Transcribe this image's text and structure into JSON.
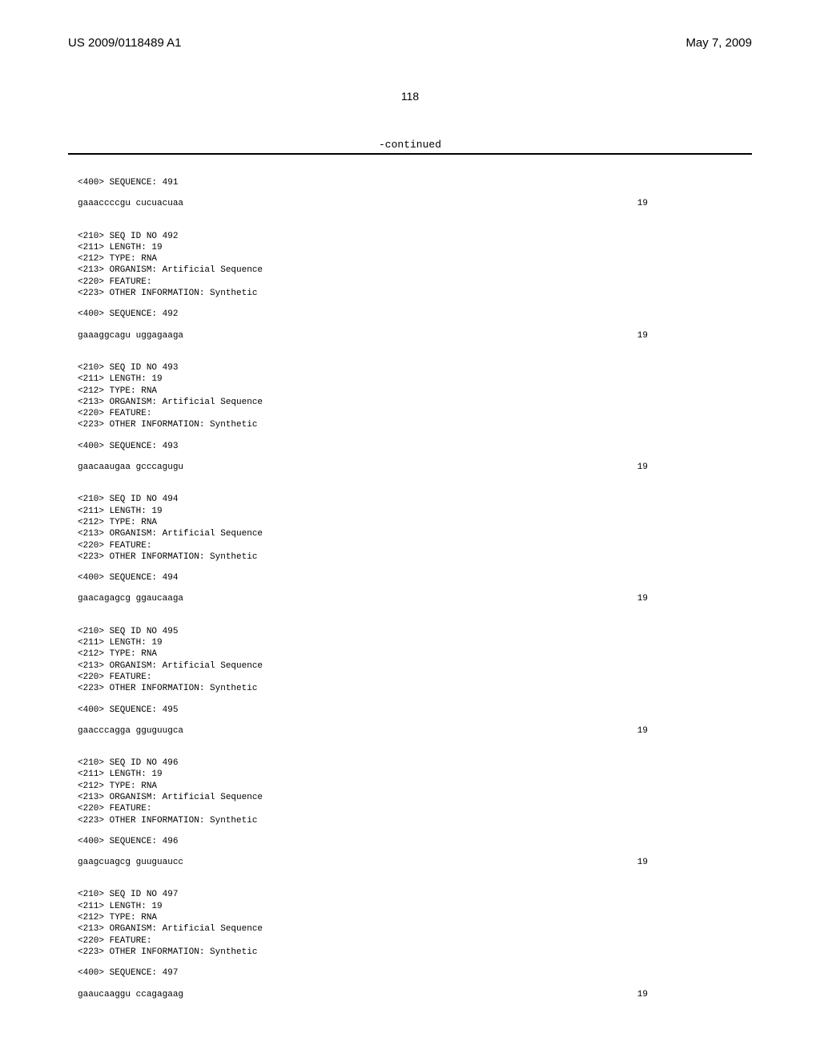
{
  "header": {
    "publicationNumber": "US 2009/0118489 A1",
    "date": "May 7, 2009"
  },
  "pageNumber": "118",
  "continuedLabel": "-continued",
  "sequences": [
    {
      "sequenceLabel": "<400> SEQUENCE: 491",
      "sequenceData": "gaaaccccgu cucuacuaa",
      "sequenceLength": "19"
    },
    {
      "fields": [
        "<210> SEQ ID NO 492",
        "<211> LENGTH: 19",
        "<212> TYPE: RNA",
        "<213> ORGANISM: Artificial Sequence",
        "<220> FEATURE:",
        "<223> OTHER INFORMATION: Synthetic"
      ],
      "sequenceLabel": "<400> SEQUENCE: 492",
      "sequenceData": "gaaaggcagu uggagaaga",
      "sequenceLength": "19"
    },
    {
      "fields": [
        "<210> SEQ ID NO 493",
        "<211> LENGTH: 19",
        "<212> TYPE: RNA",
        "<213> ORGANISM: Artificial Sequence",
        "<220> FEATURE:",
        "<223> OTHER INFORMATION: Synthetic"
      ],
      "sequenceLabel": "<400> SEQUENCE: 493",
      "sequenceData": "gaacaaugaa gcccagugu",
      "sequenceLength": "19"
    },
    {
      "fields": [
        "<210> SEQ ID NO 494",
        "<211> LENGTH: 19",
        "<212> TYPE: RNA",
        "<213> ORGANISM: Artificial Sequence",
        "<220> FEATURE:",
        "<223> OTHER INFORMATION: Synthetic"
      ],
      "sequenceLabel": "<400> SEQUENCE: 494",
      "sequenceData": "gaacagagcg ggaucaaga",
      "sequenceLength": "19"
    },
    {
      "fields": [
        "<210> SEQ ID NO 495",
        "<211> LENGTH: 19",
        "<212> TYPE: RNA",
        "<213> ORGANISM: Artificial Sequence",
        "<220> FEATURE:",
        "<223> OTHER INFORMATION: Synthetic"
      ],
      "sequenceLabel": "<400> SEQUENCE: 495",
      "sequenceData": "gaacccagga gguguugca",
      "sequenceLength": "19"
    },
    {
      "fields": [
        "<210> SEQ ID NO 496",
        "<211> LENGTH: 19",
        "<212> TYPE: RNA",
        "<213> ORGANISM: Artificial Sequence",
        "<220> FEATURE:",
        "<223> OTHER INFORMATION: Synthetic"
      ],
      "sequenceLabel": "<400> SEQUENCE: 496",
      "sequenceData": "gaagcuagcg guuguaucc",
      "sequenceLength": "19"
    },
    {
      "fields": [
        "<210> SEQ ID NO 497",
        "<211> LENGTH: 19",
        "<212> TYPE: RNA",
        "<213> ORGANISM: Artificial Sequence",
        "<220> FEATURE:",
        "<223> OTHER INFORMATION: Synthetic"
      ],
      "sequenceLabel": "<400> SEQUENCE: 497",
      "sequenceData": "gaaucaaggu ccagagaag",
      "sequenceLength": "19"
    }
  ]
}
